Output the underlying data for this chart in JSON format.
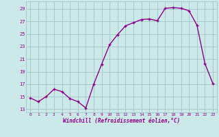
{
  "x": [
    0,
    1,
    2,
    3,
    4,
    5,
    6,
    7,
    8,
    9,
    10,
    11,
    12,
    13,
    14,
    15,
    16,
    17,
    18,
    19,
    20,
    21,
    22,
    23
  ],
  "y": [
    14.8,
    14.2,
    15.0,
    16.2,
    15.8,
    14.7,
    14.2,
    13.2,
    17.0,
    20.2,
    23.3,
    24.9,
    26.3,
    26.8,
    27.3,
    27.4,
    27.1,
    29.1,
    29.2,
    29.1,
    28.7,
    26.4,
    20.3,
    17.1
  ],
  "line_color": "#8B008B",
  "marker_color": "#8B008B",
  "bg_color": "#cce8e8",
  "grid_color": "#aacccc",
  "xlabel": "Windchill (Refroidissement éolien,°C)",
  "xlim": [
    -0.5,
    23.5
  ],
  "ylim": [
    12.5,
    30.2
  ],
  "yticks": [
    13,
    15,
    17,
    19,
    21,
    23,
    25,
    27,
    29
  ],
  "xticks": [
    0,
    1,
    2,
    3,
    4,
    5,
    6,
    7,
    8,
    9,
    10,
    11,
    12,
    13,
    14,
    15,
    16,
    17,
    18,
    19,
    20,
    21,
    22,
    23
  ],
  "marker_size": 2.5,
  "line_width": 1.0
}
